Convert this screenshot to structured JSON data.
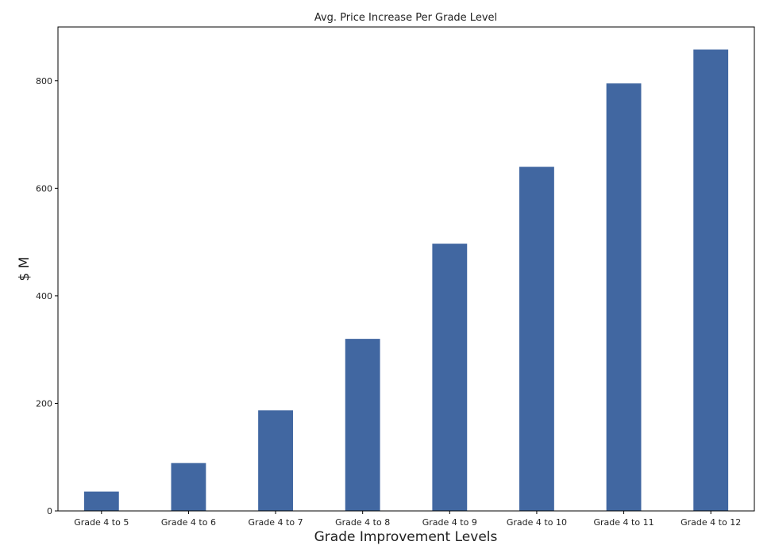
{
  "chart_data": {
    "type": "bar",
    "title": "Avg. Price Increase Per Grade Level",
    "xlabel": "Grade Improvement Levels",
    "ylabel": "$ M",
    "categories": [
      "Grade 4 to 5",
      "Grade 4 to 6",
      "Grade 4 to 7",
      "Grade 4 to 8",
      "Grade 4 to 9",
      "Grade 4 to 10",
      "Grade 4 to 11",
      "Grade 4 to 12"
    ],
    "values": [
      36,
      89,
      187,
      320,
      497,
      640,
      795,
      858
    ],
    "ylim": [
      0,
      900
    ],
    "yticks": [
      0,
      200,
      400,
      600,
      800
    ],
    "bar_color": "#4167a1",
    "grid": false,
    "legend": "none"
  }
}
